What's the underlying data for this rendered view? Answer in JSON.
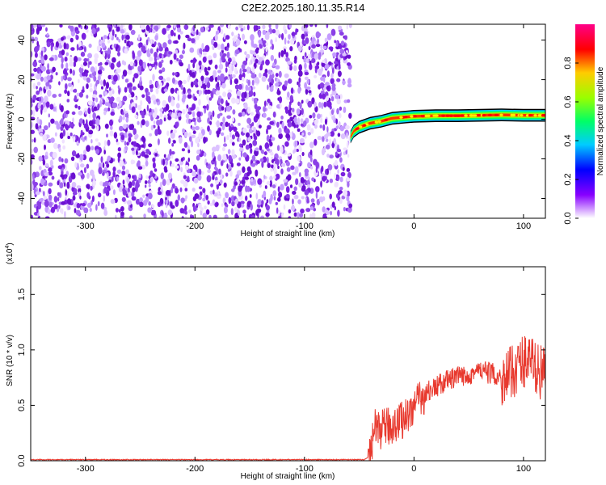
{
  "title": "C2E2.2025.180.11.35.R14",
  "chart_data": [
    {
      "type": "heatmap",
      "xlabel": "Height of straight line (km)",
      "ylabel": "Frequency (Hz)",
      "xlim": [
        -350,
        120
      ],
      "ylim": [
        -50,
        48
      ],
      "xticks": [
        -300,
        -200,
        -100,
        0,
        100
      ],
      "yticks": [
        -40,
        -20,
        0,
        20,
        40
      ],
      "noise_region_x": [
        -350,
        -58
      ],
      "signal_line": {
        "x": [
          -58,
          -55,
          -50,
          -40,
          -30,
          -20,
          -10,
          0,
          20,
          40,
          60,
          80,
          100,
          120
        ],
        "frequency": [
          -9,
          -6,
          -4,
          -2,
          -1,
          0.5,
          1,
          1.5,
          1.8,
          1.8,
          2,
          2.2,
          2,
          2
        ]
      },
      "colorbar": {
        "label": "Normalized spectral amplitude",
        "ticks": [
          0.0,
          0.2,
          0.4,
          0.6,
          0.8
        ],
        "tick_labels": [
          "0.0",
          "0.2",
          "0.4",
          "0.6",
          "0.8"
        ],
        "range": [
          0,
          1
        ]
      }
    },
    {
      "type": "line",
      "xlabel": "Height of straight line (km)",
      "ylabel": "SNR (10 * v/v)",
      "exponent_label": "(x10",
      "exponent_sup": "4",
      "exponent_close": ")",
      "xlim": [
        -350,
        120
      ],
      "ylim": [
        0,
        1.75
      ],
      "xticks": [
        -300,
        -200,
        -100,
        0,
        100
      ],
      "yticks": [
        0.0,
        0.5,
        1.0,
        1.5
      ],
      "ytick_labels": [
        "0.0",
        "0.5",
        "1.0",
        "1.5"
      ],
      "series": [
        {
          "color": "#e8392e",
          "x": [
            -350,
            -300,
            -200,
            -100,
            -45,
            -40,
            -38,
            -35,
            -30,
            -25,
            -20,
            -15,
            -10,
            -5,
            0,
            5,
            10,
            15,
            20,
            25,
            30,
            35,
            40,
            45,
            50,
            55,
            60,
            65,
            70,
            75,
            80,
            85,
            90,
            95,
            100,
            105,
            110,
            115,
            120
          ],
          "y": [
            0.01,
            0.01,
            0.01,
            0.01,
            0.01,
            0.05,
            0.2,
            0.3,
            0.28,
            0.3,
            0.32,
            0.35,
            0.38,
            0.42,
            0.5,
            0.54,
            0.6,
            0.64,
            0.66,
            0.7,
            0.72,
            0.74,
            0.75,
            0.76,
            0.78,
            0.8,
            0.81,
            0.8,
            0.79,
            0.77,
            0.74,
            0.76,
            0.8,
            0.86,
            0.9,
            0.93,
            0.85,
            0.8,
            0.8
          ]
        }
      ]
    }
  ]
}
